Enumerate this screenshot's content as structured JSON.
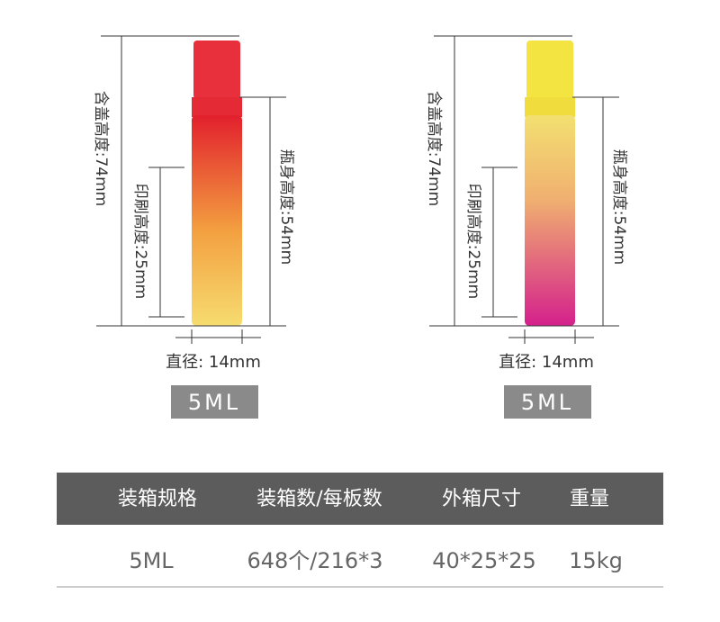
{
  "products": [
    {
      "cap_height": "含盖高度:74mm",
      "body_height": "瓶身高度:54mm",
      "print_height": "印刷高度:25mm",
      "diameter": "直径: 14mm",
      "label": "5ML"
    },
    {
      "cap_height": "含盖高度:74mm",
      "body_height": "瓶身高度:54mm",
      "print_height": "印刷高度:25mm",
      "diameter": "直径: 14mm",
      "label": "5ML"
    }
  ],
  "table": {
    "header": [
      "装箱规格",
      "装箱数/每板数",
      "外箱尺寸",
      "重量"
    ],
    "rows": [
      [
        "5ML",
        "648个/216*3",
        "40*25*25",
        "15kg"
      ]
    ]
  }
}
